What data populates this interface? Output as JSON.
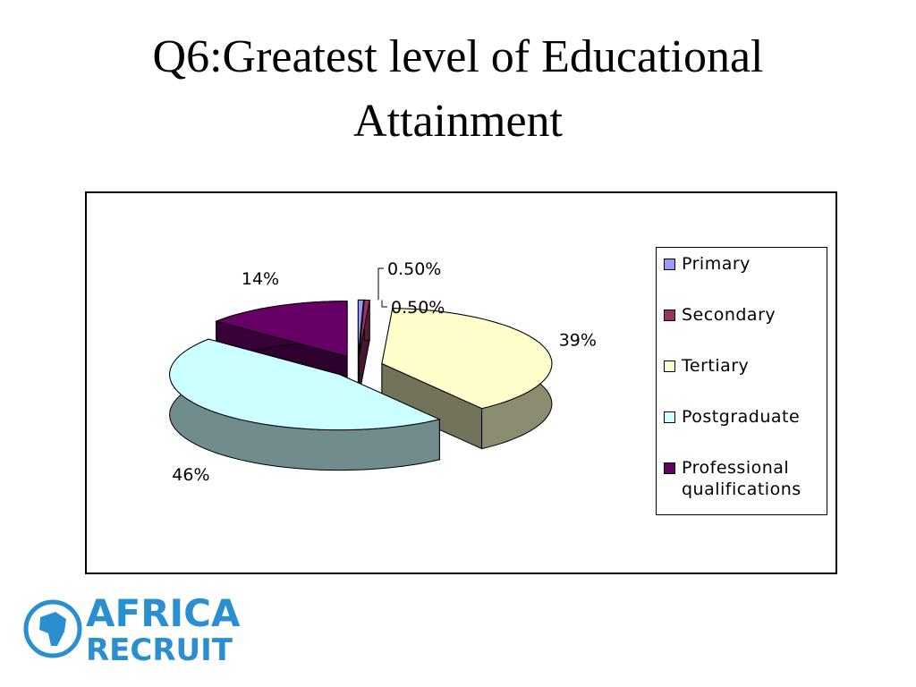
{
  "chart_data": {
    "type": "pie3d",
    "title": "Q6:Greatest level of Educational Attainment",
    "categories": [
      "Primary",
      "Secondary",
      "Tertiary",
      "Postgraduate",
      "Professional qualifications"
    ],
    "values": [
      0.5,
      0.5,
      39,
      46,
      14
    ],
    "value_labels": [
      "0.50%",
      "0.50%",
      "39%",
      "46%",
      "14%"
    ],
    "colors": [
      "#9999ff",
      "#993366",
      "#ffffcc",
      "#ccffff",
      "#660066"
    ],
    "legend": "right"
  },
  "logo": {
    "line1": "AFRICA",
    "line2": "RECRUIT"
  }
}
